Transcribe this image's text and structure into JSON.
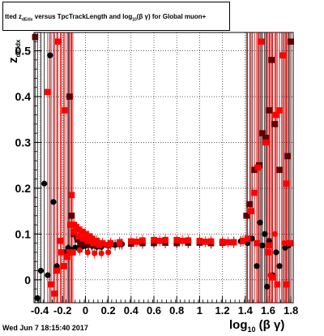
{
  "title": "tted  z_dE/dx versus TpcTrackLength and log_10(βγ) for Global muon+",
  "title_parts": {
    "prefix": "tted  z",
    "sub1": "dE/dx",
    "mid": " versus TpcTrackLength and log",
    "sub2": "10",
    "suffix": "(β γ) for Global muon+"
  },
  "y_label": {
    "main": "z",
    "sub": "dE/dx"
  },
  "x_label": {
    "main": "log",
    "sub": "10",
    "suffix": " (β γ)"
  },
  "timestamp": "Wed Jun  7 18:15:40 2017",
  "chart_data": {
    "type": "scatter",
    "title": "tted  z_dE/dx versus TpcTrackLength and log_10(βγ) for Global muon+",
    "xlabel": "log10 (β γ)",
    "ylabel": "z dE/dx",
    "xlim": [
      -0.45,
      1.82
    ],
    "ylim": [
      -0.05,
      0.54
    ],
    "grid": true,
    "x_ticks": [
      -0.4,
      -0.2,
      0,
      0.2,
      0.4,
      0.6,
      0.8,
      1,
      1.2,
      1.4,
      1.6,
      1.8
    ],
    "x_tick_labels": [
      "-0.4",
      "-0.2",
      "0",
      "0.2",
      "0.4",
      "0.6",
      "0.8",
      "1",
      "1.2",
      "1.4",
      "1.6",
      "1.8"
    ],
    "y_ticks": [
      0,
      0.1,
      0.2,
      0.3,
      0.4,
      0.5
    ],
    "y_tick_labels": [
      "0",
      "0.1",
      "0.2",
      "0.3",
      "0.4",
      "0.5"
    ],
    "colors": {
      "black": "#000000",
      "dark_red": "#5a0000",
      "red": "#ff0000"
    },
    "series": [
      {
        "marker": "circle",
        "color": "#000000",
        "points": [
          [
            -0.42,
            -0.04
          ],
          [
            -0.39,
            0.02
          ],
          [
            -0.36,
            0.21
          ],
          [
            -0.33,
            0.01
          ],
          [
            -0.31,
            0.49
          ],
          [
            -0.28,
            0.17
          ],
          [
            -0.25,
            0.03
          ],
          [
            -0.21,
            0.06
          ],
          [
            -0.18,
            0.06
          ],
          [
            -0.15,
            0.07
          ],
          [
            -0.12,
            0.065
          ],
          [
            -0.09,
            0.07
          ],
          [
            -0.06,
            0.07
          ],
          [
            -0.03,
            0.072
          ],
          [
            0.0,
            0.074
          ],
          [
            0.03,
            0.076
          ],
          [
            0.06,
            0.074
          ],
          [
            0.1,
            0.072
          ],
          [
            0.14,
            0.072
          ],
          [
            0.2,
            0.074
          ],
          [
            0.26,
            0.076
          ],
          [
            0.32,
            0.078
          ],
          [
            0.4,
            0.08
          ],
          [
            0.5,
            0.08
          ],
          [
            0.6,
            0.081
          ],
          [
            0.7,
            0.082
          ],
          [
            0.8,
            0.082
          ],
          [
            0.9,
            0.082
          ],
          [
            1.0,
            0.082
          ],
          [
            1.1,
            0.081
          ],
          [
            1.2,
            0.082
          ],
          [
            1.3,
            0.082
          ],
          [
            1.36,
            0.084
          ],
          [
            1.42,
            0.08
          ],
          [
            1.46,
            0.09
          ],
          [
            1.5,
            0.03
          ],
          [
            1.53,
            0.125
          ],
          [
            1.55,
            0.075
          ],
          [
            1.57,
            0.1
          ],
          [
            1.59,
            -0.015
          ],
          [
            1.61,
            0.085
          ],
          [
            1.64,
            0.01
          ],
          [
            1.67,
            0.06
          ],
          [
            1.7,
            0.03
          ],
          [
            1.72,
            -0.06
          ],
          [
            1.75,
            0.07
          ],
          [
            1.78,
            0.075
          ]
        ]
      },
      {
        "marker": "square",
        "color": "#5a0000",
        "points": [
          [
            -0.44,
            0.53
          ],
          [
            -0.14,
            0.4
          ],
          [
            -0.12,
            0.14
          ],
          [
            -0.1,
            0.1
          ],
          [
            -0.07,
            0.088
          ],
          [
            -0.04,
            0.08
          ],
          [
            0.0,
            0.078
          ],
          [
            0.05,
            0.078
          ],
          [
            0.1,
            0.076
          ],
          [
            0.15,
            0.077
          ],
          [
            0.22,
            0.078
          ],
          [
            0.3,
            0.078
          ],
          [
            0.4,
            0.079
          ],
          [
            0.5,
            0.08
          ],
          [
            0.6,
            0.08
          ],
          [
            0.7,
            0.081
          ],
          [
            0.8,
            0.08
          ],
          [
            0.9,
            0.081
          ],
          [
            1.0,
            0.081
          ],
          [
            1.1,
            0.08
          ],
          [
            1.2,
            0.081
          ],
          [
            1.3,
            0.082
          ],
          [
            1.38,
            0.085
          ],
          [
            1.41,
            0.14
          ],
          [
            1.44,
            0.165
          ],
          [
            1.48,
            0.24
          ],
          [
            1.52,
            0.25
          ],
          [
            1.55,
            0.32
          ],
          [
            1.58,
            0.31
          ],
          [
            1.61,
            0.37
          ],
          [
            1.63,
            0.48
          ],
          [
            1.66,
            0.34
          ],
          [
            1.7,
            0.24
          ],
          [
            1.77,
            0.27
          ],
          [
            1.8,
            0.52
          ]
        ]
      },
      {
        "marker": "square",
        "color": "#ff0000",
        "points": [
          [
            -0.33,
            0.41
          ],
          [
            -0.3,
            -0.01
          ],
          [
            -0.27,
            -0.03
          ],
          [
            -0.25,
            0.02
          ],
          [
            -0.22,
            0.085
          ],
          [
            -0.18,
            0.37
          ],
          [
            -0.16,
            0.05
          ],
          [
            -0.14,
            0.06
          ],
          [
            -0.12,
            0.185
          ],
          [
            -0.11,
            0.06
          ],
          [
            -0.1,
            0.12
          ],
          [
            -0.08,
            0.115
          ],
          [
            -0.06,
            0.11
          ],
          [
            -0.03,
            0.105
          ],
          [
            0.0,
            0.1
          ],
          [
            0.03,
            0.095
          ],
          [
            0.06,
            0.09
          ],
          [
            0.1,
            0.085
          ],
          [
            0.15,
            0.08
          ],
          [
            0.22,
            0.08
          ],
          [
            0.3,
            0.082
          ],
          [
            0.4,
            0.084
          ],
          [
            0.5,
            0.086
          ],
          [
            0.6,
            0.087
          ],
          [
            0.7,
            0.087
          ],
          [
            0.8,
            0.087
          ],
          [
            0.9,
            0.086
          ],
          [
            1.0,
            0.085
          ],
          [
            1.1,
            0.084
          ],
          [
            1.2,
            0.083
          ],
          [
            1.3,
            0.082
          ],
          [
            1.38,
            0.085
          ],
          [
            1.42,
            0.09
          ],
          [
            1.45,
            0.15
          ],
          [
            1.48,
            0.19
          ],
          [
            1.51,
            0.245
          ],
          [
            1.54,
            0.52
          ],
          [
            1.58,
            0.3
          ],
          [
            1.61,
            0.075
          ],
          [
            1.64,
            0.005
          ],
          [
            1.67,
            0.36
          ],
          [
            1.7,
            0.37
          ],
          [
            1.73,
            0.49
          ],
          [
            1.76,
            0.21
          ],
          [
            1.79,
            0.08
          ]
        ]
      },
      {
        "marker": "square",
        "color": "#ff0000",
        "points": [
          [
            -0.24,
            0.52
          ],
          [
            -0.21,
            0.06
          ],
          [
            -0.19,
            0.03
          ],
          [
            -0.16,
            0.05
          ],
          [
            -0.13,
            0.12
          ],
          [
            -0.1,
            0.105
          ],
          [
            -0.06,
            0.095
          ],
          [
            -0.02,
            0.09
          ],
          [
            0.02,
            0.085
          ],
          [
            0.07,
            0.08
          ],
          [
            0.12,
            0.076
          ],
          [
            0.2,
            0.076
          ],
          [
            0.3,
            0.08
          ],
          [
            0.45,
            0.083
          ],
          [
            0.65,
            0.085
          ],
          [
            0.85,
            0.085
          ],
          [
            1.05,
            0.083
          ],
          [
            1.25,
            0.082
          ],
          [
            1.5,
            0.08
          ],
          [
            1.6,
            0.06
          ],
          [
            1.68,
            -0.01
          ],
          [
            1.76,
            -0.01
          ]
        ]
      },
      {
        "marker": "circle",
        "color": "#ff0000",
        "points": [
          [
            -0.05,
            0.065
          ],
          [
            0.02,
            0.06
          ],
          [
            0.08,
            0.058
          ],
          [
            0.14,
            0.058
          ],
          [
            0.2,
            0.06
          ],
          [
            1.62,
            0.01
          ],
          [
            1.66,
            0.1
          ],
          [
            1.74,
            0.08
          ]
        ]
      }
    ]
  }
}
